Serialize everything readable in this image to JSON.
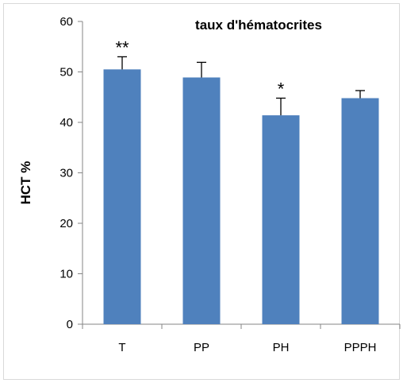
{
  "chart_data": {
    "type": "bar",
    "title": "taux d'hématocrites",
    "xlabel": "",
    "ylabel": "HCT %",
    "ylim": [
      0,
      60
    ],
    "yticks": [
      0,
      10,
      20,
      30,
      40,
      50,
      60
    ],
    "categories": [
      "T",
      "PP",
      "PH",
      "PPPH"
    ],
    "values": [
      50.5,
      48.9,
      41.4,
      44.8
    ],
    "error_upper": [
      2.5,
      3.0,
      3.4,
      1.5
    ],
    "significance": [
      "**",
      "",
      "*",
      ""
    ],
    "bar_color": "#4f81bd",
    "grid": false,
    "legend": "none"
  }
}
